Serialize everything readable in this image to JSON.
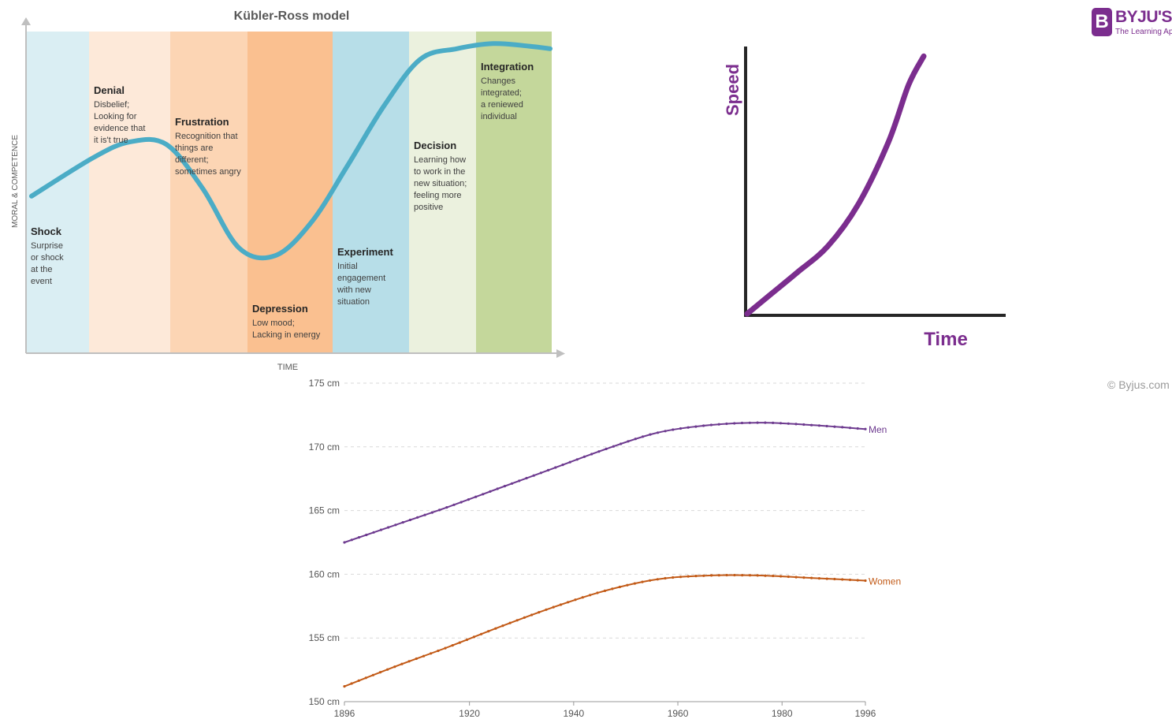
{
  "brand": {
    "letter": "B",
    "name": "BYJU'S",
    "tagline": "The Learning App",
    "copyright": "© Byjus.com",
    "color": "#7b2d8e"
  },
  "chart_data": [
    {
      "type": "line",
      "title": "Kübler-Ross model",
      "xlabel": "TIME",
      "ylabel": "MORAL & COMPETENCE",
      "line_color": "#4bacc6",
      "stages": [
        {
          "name": "Shock",
          "lines": [
            "Surprise",
            "or shock",
            "at the",
            "event"
          ],
          "color": "#daeef3"
        },
        {
          "name": "Denial",
          "lines": [
            "Disbelief;",
            "Looking for",
            "evidence that",
            "it is't true"
          ],
          "color": "#fde9d9"
        },
        {
          "name": "Frustration",
          "lines": [
            "Recognition that",
            "things are",
            "different;",
            "sometimes angry"
          ],
          "color": "#fcd5b4"
        },
        {
          "name": "Depression",
          "lines": [
            "Low mood;",
            "Lacking in energy"
          ],
          "color": "#fac090"
        },
        {
          "name": "Experiment",
          "lines": [
            "Initial",
            "engagement",
            "with new",
            "situation"
          ],
          "color": "#b7dee8"
        },
        {
          "name": "Decision",
          "lines": [
            "Learning how",
            "to work in the",
            "new situation;",
            "feeling more",
            "positive"
          ],
          "color": "#ebf1de"
        },
        {
          "name": "Integration",
          "lines": [
            "Changes",
            "integrated;",
            "a reniewed",
            "individual"
          ],
          "color": "#c4d79b"
        }
      ],
      "x": [
        0,
        0.12,
        0.19,
        0.26,
        0.33,
        0.4,
        0.47,
        0.54,
        0.61,
        0.68,
        0.75,
        0.82,
        0.89,
        0.96,
        1.0
      ],
      "y": [
        0.4,
        0.55,
        0.61,
        0.6,
        0.43,
        0.2,
        0.17,
        0.3,
        0.52,
        0.75,
        0.93,
        0.97,
        0.99,
        0.98,
        0.97
      ]
    },
    {
      "type": "line",
      "xlabel": "Time",
      "ylabel": "Speed",
      "series": [
        {
          "color": "#7b2d8e",
          "x": [
            0,
            0.1,
            0.2,
            0.32,
            0.44,
            0.56,
            0.64,
            0.7
          ],
          "y": [
            0,
            0.08,
            0.16,
            0.26,
            0.42,
            0.66,
            0.88,
            0.99
          ]
        }
      ]
    },
    {
      "type": "line",
      "x": [
        1896,
        1906,
        1916,
        1926,
        1936,
        1946,
        1956,
        1966,
        1976,
        1986,
        1996
      ],
      "xticks": [
        1896,
        1920,
        1940,
        1960,
        1980,
        1996
      ],
      "yticks": [
        150,
        155,
        160,
        165,
        170,
        175
      ],
      "ytick_labels": [
        "150 cm",
        "155 cm",
        "160 cm",
        "165 cm",
        "170 cm",
        "175 cm"
      ],
      "ylim": [
        150,
        175
      ],
      "xlim": [
        1896,
        1996
      ],
      "series": [
        {
          "name": "Men",
          "color": "#6d3a8f",
          "values": [
            162.5,
            163.9,
            165.3,
            166.8,
            168.3,
            169.8,
            171.1,
            171.7,
            171.9,
            171.7,
            171.4
          ]
        },
        {
          "name": "Women",
          "color": "#c25a17",
          "values": [
            151.2,
            152.8,
            154.3,
            155.9,
            157.4,
            158.7,
            159.6,
            159.9,
            159.9,
            159.7,
            159.5
          ]
        }
      ]
    }
  ]
}
